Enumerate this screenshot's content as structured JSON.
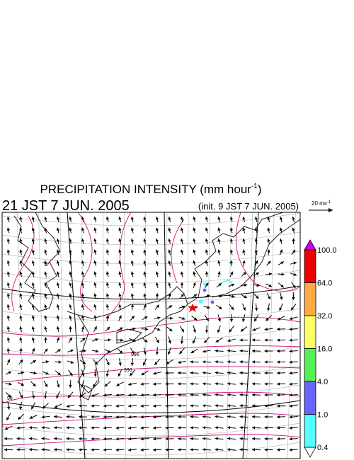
{
  "header": {
    "title": "PRECIPITATION INTENSITY (mm hour",
    "title_sup": "-1",
    "title_end": ")",
    "valid_time": "21 JST 7 JUN. 2005",
    "init_time": "(init. 9 JST 7 JUN. 2005)"
  },
  "scale": {
    "label": "20 ms",
    "sup": "-1"
  },
  "colorbar": {
    "labels": [
      "0.4",
      "1.0",
      "4.0",
      "16.0",
      "32.0",
      "64.0",
      "100.0"
    ],
    "colors": [
      "#ffffff",
      "#55ffff",
      "#6666ff",
      "#55ee55",
      "#ffff66",
      "#ffaa44",
      "#ee0000",
      "#cc00ee"
    ]
  },
  "contour_labels": [
    "996",
    "996",
    "98"
  ]
}
